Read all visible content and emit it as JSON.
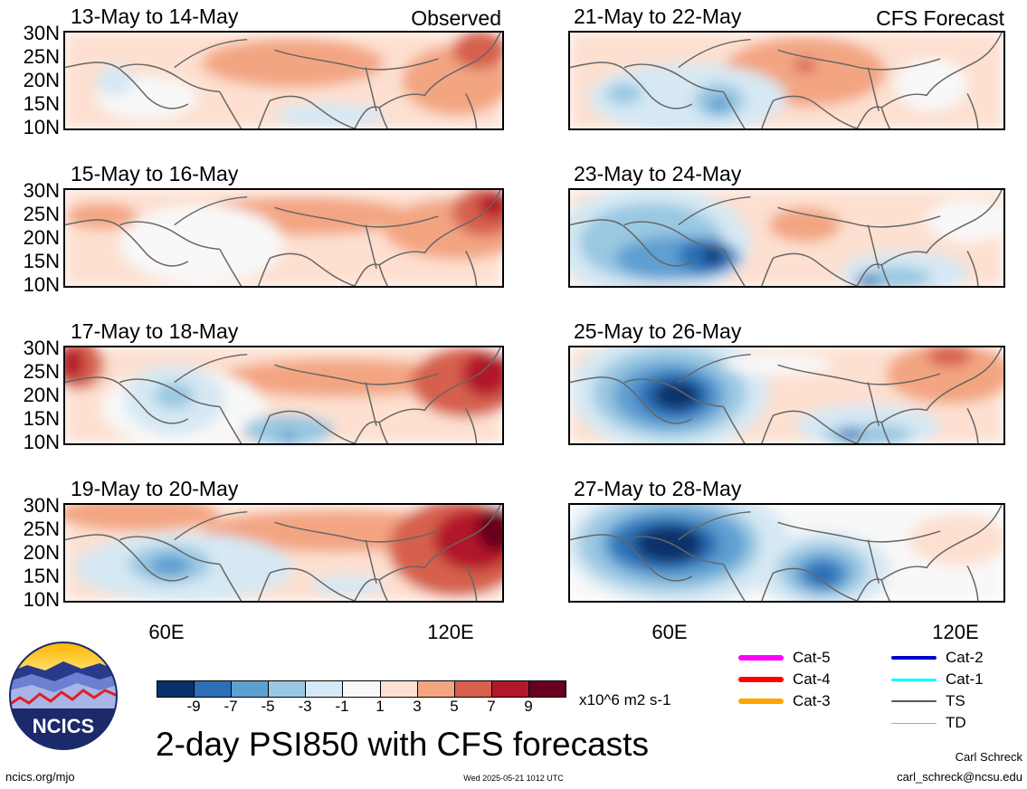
{
  "header": {
    "observed_label": "Observed",
    "forecast_label": "CFS Forecast"
  },
  "panels": [
    {
      "title": "13-May to 14-May"
    },
    {
      "title": "15-May to 16-May"
    },
    {
      "title": "17-May to 18-May"
    },
    {
      "title": "19-May to 20-May"
    },
    {
      "title": "21-May to 22-May"
    },
    {
      "title": "23-May to 24-May"
    },
    {
      "title": "25-May to 26-May"
    },
    {
      "title": "27-May to 28-May"
    }
  ],
  "axes": {
    "lat_labels": [
      "30N",
      "25N",
      "20N",
      "15N",
      "10N"
    ],
    "lon_labels": [
      "60E",
      "120E"
    ]
  },
  "colorbar": {
    "colors": [
      "#08306b",
      "#2c6fb6",
      "#5e9fd1",
      "#9ac8e2",
      "#d6e8f3",
      "#f8f8f8",
      "#fde0d0",
      "#f3a582",
      "#d6604d",
      "#b2182b",
      "#67001f"
    ],
    "ticks": [
      "-9",
      "-7",
      "-5",
      "-3",
      "-1",
      "1",
      "3",
      "5",
      "7",
      "9"
    ],
    "units": "x10^6 m2 s-1"
  },
  "title": "2-day PSI850 with CFS forecasts",
  "legend": {
    "items": [
      {
        "label": "Cat-5",
        "color": "#ff00ff"
      },
      {
        "label": "Cat-4",
        "color": "#ff0000"
      },
      {
        "label": "Cat-3",
        "color": "#ffa500"
      },
      {
        "label": "Cat-2",
        "color": "#0000cd"
      },
      {
        "label": "Cat-1",
        "color": "#00ffff"
      },
      {
        "label": "TS",
        "color": "#555555"
      },
      {
        "label": "TD",
        "color": "#aaaaaa"
      }
    ]
  },
  "logo": {
    "text": "NCICS"
  },
  "footer": {
    "url": "ncics.org/mjo",
    "timestamp": "Wed 2025-05-21 1012 UTC",
    "author": "Carl Schreck",
    "email": "carl_schreck@ncsu.edu"
  }
}
